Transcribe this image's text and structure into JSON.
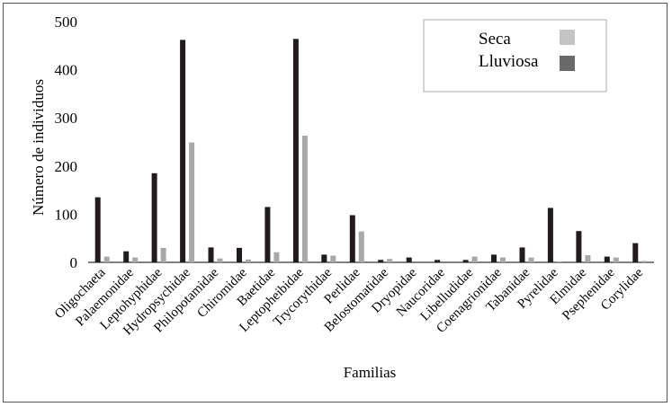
{
  "chart_data": {
    "type": "bar",
    "title": "",
    "xlabel": "Familias",
    "ylabel": "Número de individuos",
    "ylim": [
      0,
      500
    ],
    "yticks": [
      0,
      100,
      200,
      300,
      400,
      500
    ],
    "grid": false,
    "legend_position": "top-right",
    "categories": [
      "Oligochaeta",
      "Palaemonidae",
      "Leptohyphidae",
      "Hydropsychidae",
      "Philopotamidae",
      "Chiromidae",
      "Baetidae",
      "Leptopheibidae",
      "Trycorythidae",
      "Perlidae",
      "Belostomatidae",
      "Dryopidae",
      "Naucoridae",
      "Libelludidae",
      "Coenagrionidae",
      "Tabanidae",
      "Pyrelidae",
      "Elmidae",
      "Psephenidae",
      "Corylidae"
    ],
    "series": [
      {
        "name": "Lluviosa",
        "color": "#231a1a",
        "values": [
          135,
          23,
          185,
          462,
          31,
          30,
          115,
          464,
          16,
          98,
          5,
          10,
          5,
          5,
          16,
          31,
          113,
          65,
          12,
          40
        ]
      },
      {
        "name": "Seca",
        "color": "#a8a8a8",
        "values": [
          12,
          10,
          30,
          249,
          8,
          6,
          21,
          263,
          14,
          64,
          7,
          0,
          0,
          12,
          10,
          10,
          2,
          15,
          10,
          3
        ]
      }
    ],
    "legend": [
      {
        "label": "Seca",
        "color": "#c4c4c4"
      },
      {
        "label": "Lluviosa",
        "color": "#6a6a6a"
      }
    ]
  }
}
